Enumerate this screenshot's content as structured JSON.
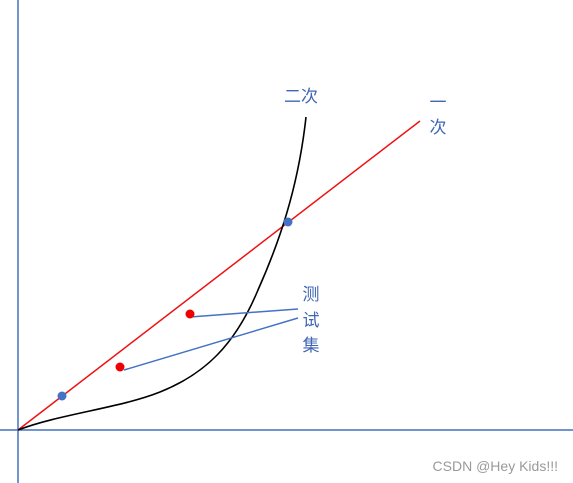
{
  "labels": {
    "quadratic": "二次",
    "linear": [
      "一",
      "次"
    ],
    "test_set": [
      "测",
      "试",
      "集"
    ]
  },
  "watermark": "CSDN @Hey Kids!!!"
}
